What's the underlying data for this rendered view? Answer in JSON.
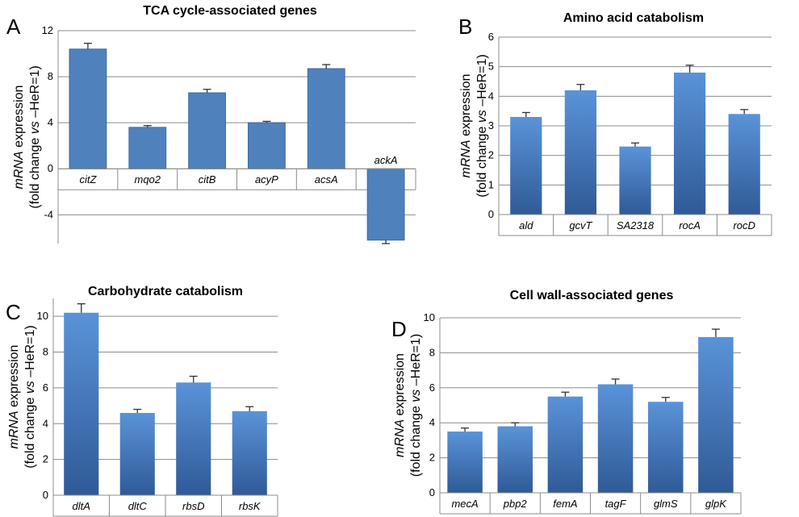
{
  "colors": {
    "bar": "#4f81bd",
    "bar_top": "#5a93d8",
    "bar_bottom": "#2f5a97",
    "grid": "#8c8c8c"
  },
  "chart_data": [
    {
      "panel": "A",
      "type": "bar",
      "title": "TCA cycle-associated genes",
      "ylabel_parts": [
        "mRNA",
        " expression",
        "(fold change ",
        "vs",
        " –HeR=1)"
      ],
      "categories": [
        "citZ",
        "mqo2",
        "citB",
        "acyP",
        "acsA",
        "ackA"
      ],
      "values": [
        10.4,
        3.6,
        6.6,
        4.0,
        8.7,
        -6.2
      ],
      "errors": [
        0.5,
        0.15,
        0.3,
        0.12,
        0.35,
        0.3
      ],
      "ylim": [
        -6.5,
        12
      ],
      "yticks": [
        -4,
        0,
        4,
        8,
        12
      ],
      "grid": true,
      "style": "flat"
    },
    {
      "panel": "B",
      "type": "bar",
      "title": "Amino acid catabolism",
      "ylabel_parts": [
        "mRNA",
        " expression",
        "(fold change ",
        "vs",
        " –HeR=1)"
      ],
      "categories": [
        "ald",
        "gcvT",
        "SA2318",
        "rocA",
        "rocD"
      ],
      "values": [
        3.3,
        4.2,
        2.3,
        4.8,
        3.4
      ],
      "errors": [
        0.15,
        0.2,
        0.12,
        0.25,
        0.15
      ],
      "ylim": [
        0,
        6
      ],
      "yticks": [
        0,
        1,
        2,
        3,
        4,
        5,
        6
      ],
      "grid": true,
      "style": "gradient"
    },
    {
      "panel": "C",
      "type": "bar",
      "title": "Carbohydrate catabolism",
      "ylabel_parts": [
        "mRNA",
        " expression",
        "(fold change ",
        "vs",
        " –HeR=1)"
      ],
      "categories": [
        "dltA",
        "dltC",
        "rbsD",
        "rbsK"
      ],
      "values": [
        10.2,
        4.6,
        6.3,
        4.7
      ],
      "errors": [
        0.5,
        0.2,
        0.35,
        0.25
      ],
      "ylim": [
        0,
        11
      ],
      "yticks": [
        0,
        2,
        4,
        6,
        8,
        10
      ],
      "grid": true,
      "style": "gradient"
    },
    {
      "panel": "D",
      "type": "bar",
      "title": "Cell wall-associated genes",
      "ylabel_parts": [
        "mRNA",
        " expression",
        "(fold change ",
        "vs",
        " –HeR=1)"
      ],
      "categories": [
        "mecA",
        "pbp2",
        "femA",
        "tagF",
        "glmS",
        "glpK"
      ],
      "values": [
        3.5,
        3.8,
        5.5,
        6.2,
        5.2,
        8.9
      ],
      "errors": [
        0.2,
        0.2,
        0.25,
        0.3,
        0.25,
        0.45
      ],
      "ylim": [
        0,
        10
      ],
      "yticks": [
        0,
        2,
        4,
        6,
        8,
        10
      ],
      "grid": true,
      "style": "gradient"
    }
  ]
}
